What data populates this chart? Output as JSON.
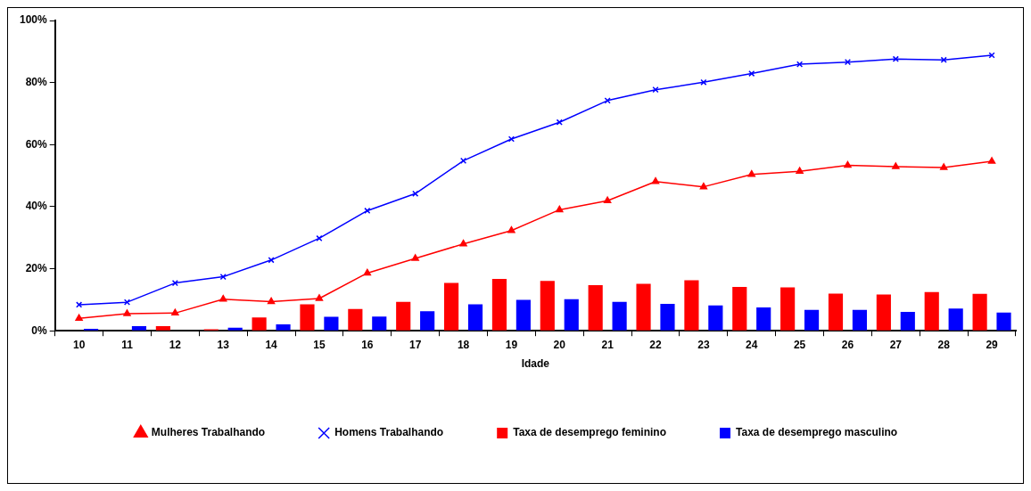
{
  "chart_data": {
    "type": "bar",
    "xlabel": "Idade",
    "categories": [
      "10",
      "11",
      "12",
      "13",
      "14",
      "15",
      "16",
      "17",
      "18",
      "19",
      "20",
      "21",
      "22",
      "23",
      "24",
      "25",
      "26",
      "27",
      "28",
      "29"
    ],
    "series": [
      {
        "name": "Taxa de desemprego feminino",
        "color": "#ff0000",
        "values": [
          0,
          0,
          1.5,
          0.5,
          4.3,
          8.5,
          7.0,
          9.3,
          15.4,
          16.7,
          16.1,
          14.7,
          15.1,
          16.3,
          14.1,
          14.0,
          12.0,
          11.7,
          12.5,
          11.9
        ]
      },
      {
        "name": "Taxa de desemprego masculino",
        "color": "#0000ff",
        "values": [
          0.6,
          1.5,
          0,
          1.0,
          2.1,
          4.5,
          4.6,
          6.3,
          8.5,
          10.0,
          10.2,
          9.3,
          8.7,
          8.2,
          7.5,
          6.7,
          6.7,
          6.1,
          7.2,
          5.9
        ]
      },
      {
        "name": "Mulheres Trabalhando",
        "type": "line",
        "marker": "triangle",
        "color": "#ff0000",
        "values": [
          4.0,
          5.5,
          5.7,
          10.2,
          9.4,
          10.4,
          18.6,
          23.3,
          28.0,
          32.3,
          39.0,
          41.9,
          48.1,
          46.4,
          50.4,
          51.4,
          53.3,
          52.9,
          52.6,
          54.6
        ]
      },
      {
        "name": "Homens Trabalhando",
        "type": "line",
        "marker": "cross",
        "color": "#0000ff",
        "values": [
          8.4,
          9.2,
          15.4,
          17.4,
          22.8,
          29.8,
          38.7,
          44.2,
          54.8,
          61.8,
          67.2,
          74.2,
          77.7,
          80.1,
          82.9,
          85.9,
          86.6,
          87.6,
          87.3,
          88.8
        ]
      }
    ],
    "ylim": [
      0,
      100
    ],
    "yticks": [
      {
        "value": 0,
        "label": "0%"
      },
      {
        "value": 20,
        "label": "20%"
      },
      {
        "value": 40,
        "label": "40%"
      },
      {
        "value": 60,
        "label": "60%"
      },
      {
        "value": 80,
        "label": "80%"
      },
      {
        "value": 100,
        "label": "100%"
      }
    ],
    "grid": false,
    "legend": "bottom"
  }
}
